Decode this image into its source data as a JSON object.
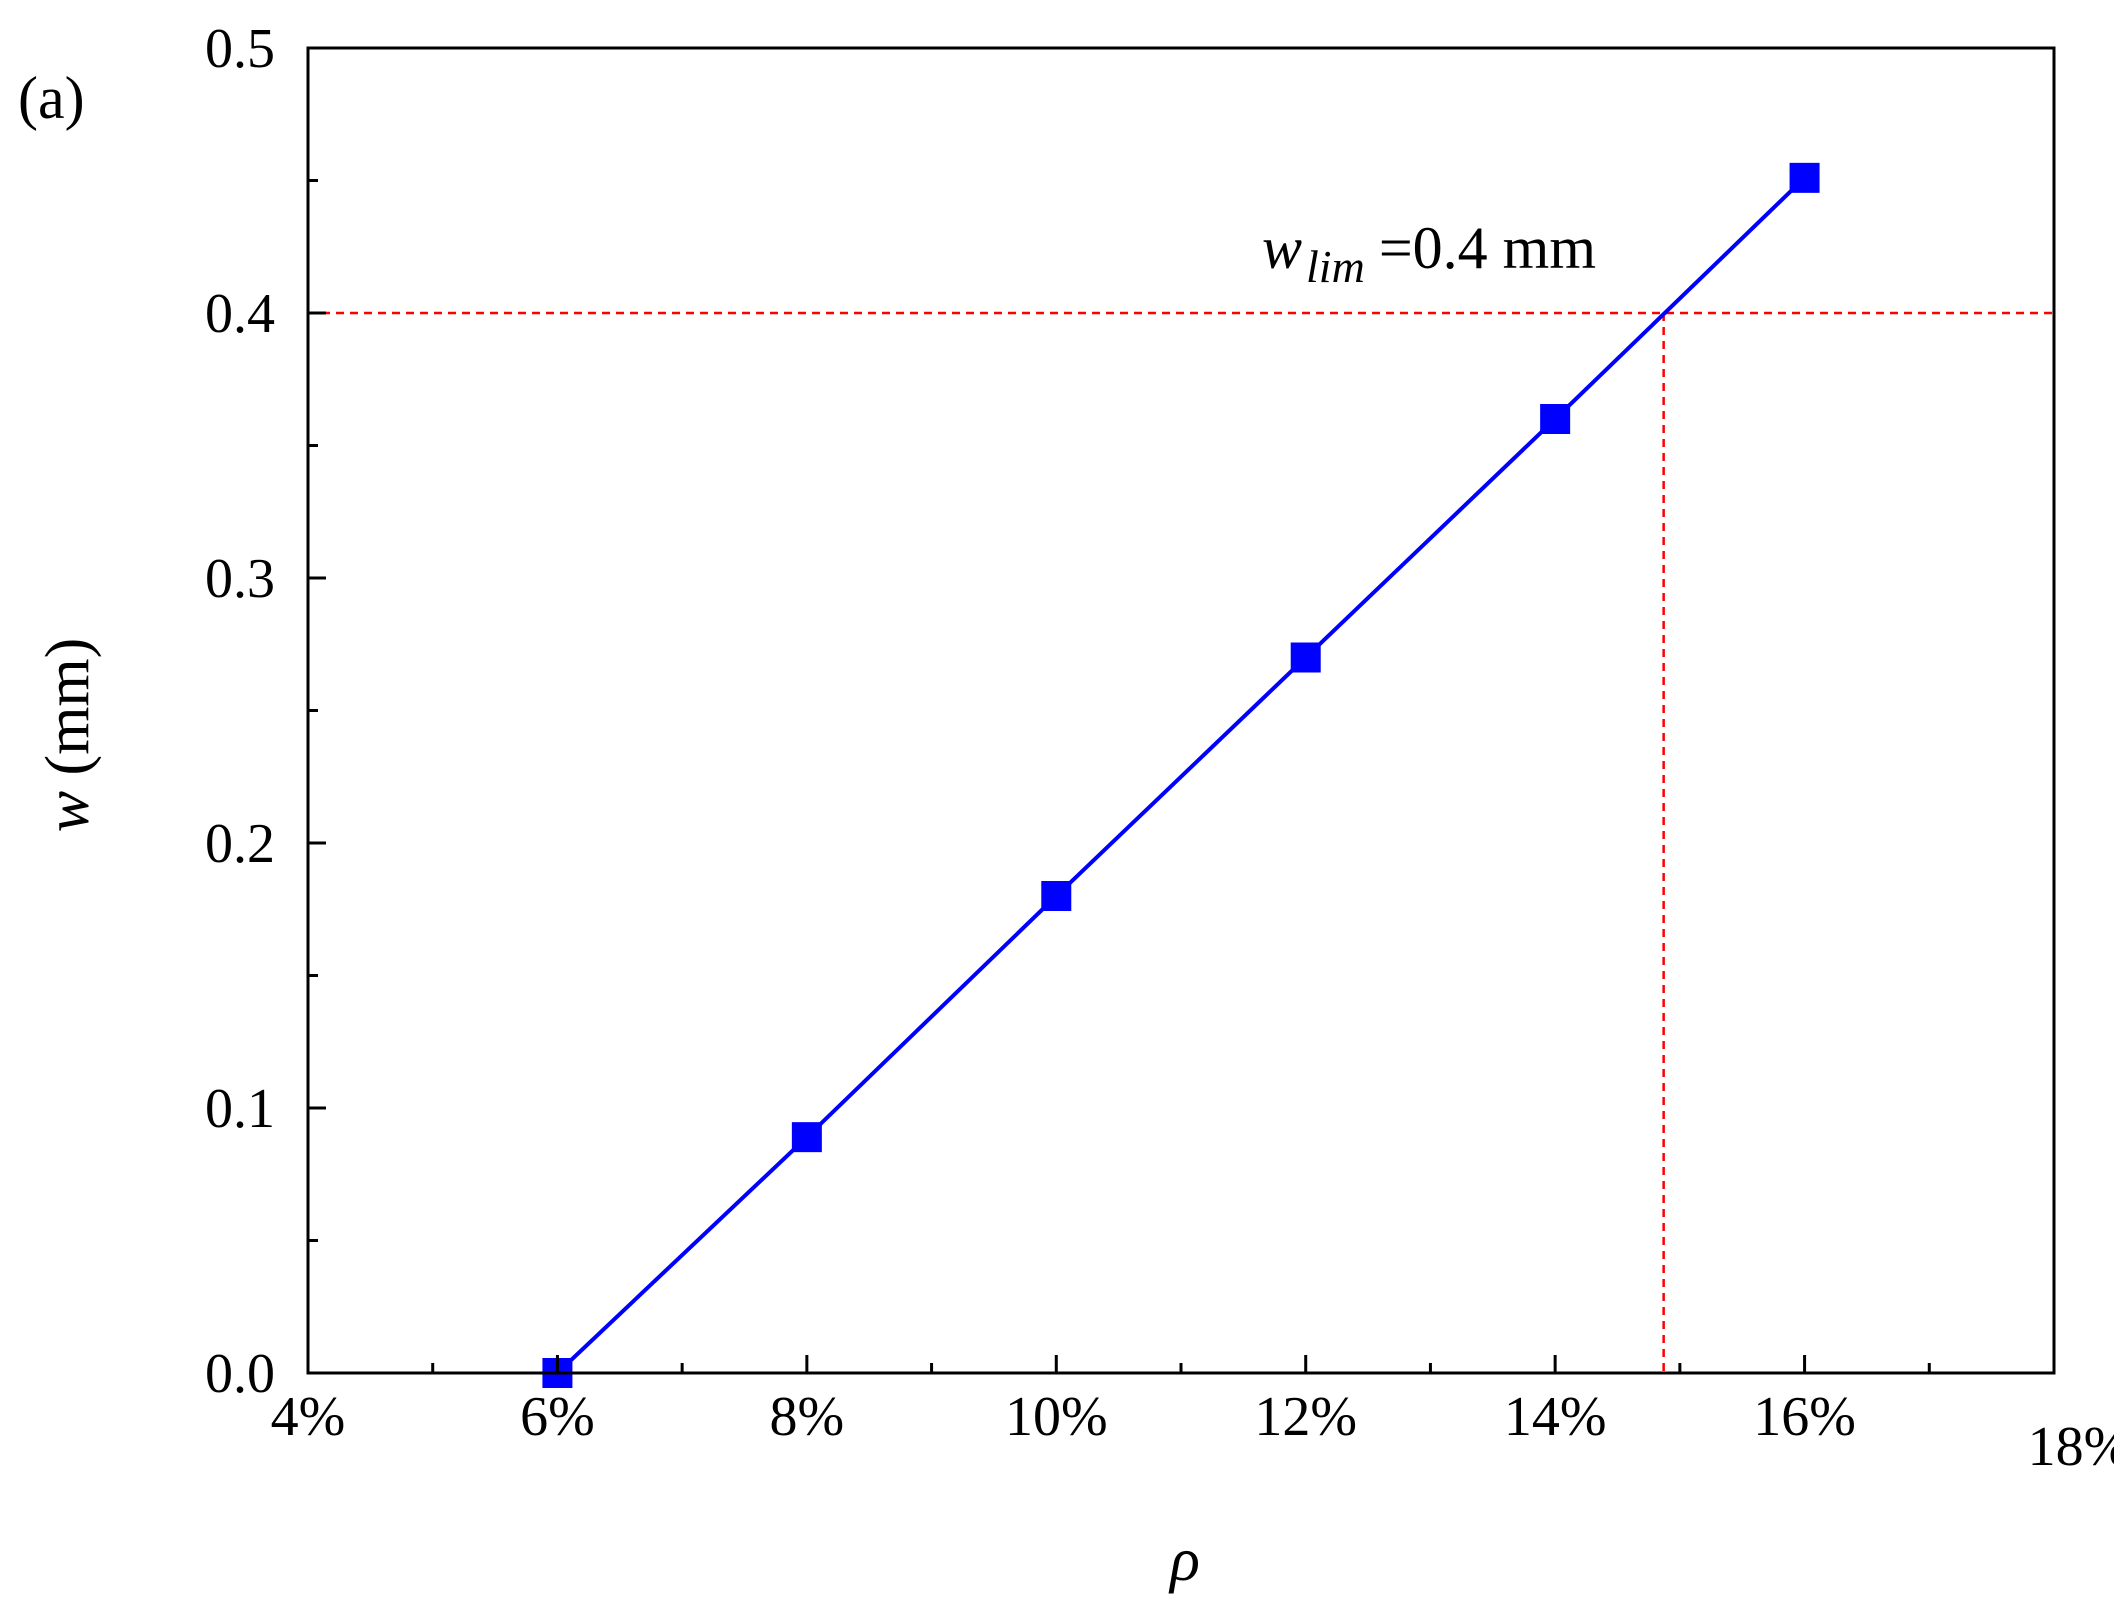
{
  "panel_label": "(a)",
  "chart_data": {
    "type": "line",
    "xlabel": "ρ",
    "ylabel_var": "w",
    "ylabel_unit": "(mm)",
    "xlim": [
      4,
      18
    ],
    "ylim": [
      0,
      0.5
    ],
    "x_ticks": [
      4,
      6,
      8,
      10,
      12,
      14,
      16,
      18
    ],
    "x_tick_labels": [
      "4%",
      "6%",
      "8%",
      "10%",
      "12%",
      "14%",
      "16%",
      "18%"
    ],
    "x_minor_ticks": [
      5,
      7,
      9,
      11,
      13,
      15,
      17
    ],
    "y_ticks": [
      0,
      0.1,
      0.2,
      0.3,
      0.4,
      0.5
    ],
    "y_tick_labels": [
      "0.0",
      "0.1",
      "0.2",
      "0.3",
      "0.4",
      "0.5"
    ],
    "y_minor_ticks": [
      0.05,
      0.15,
      0.25,
      0.35,
      0.45
    ],
    "grid": false,
    "series": [
      {
        "x": [
          6,
          8,
          10,
          12,
          14,
          16
        ],
        "y": [
          0.0,
          0.089,
          0.18,
          0.27,
          0.36,
          0.451
        ],
        "color": "#0000ff",
        "marker": "square"
      }
    ],
    "reference": {
      "y": 0.4,
      "x": 14.87,
      "color": "#ff0000",
      "label_var": "w",
      "label_sub": "lim",
      "label_text": "=0.4 mm"
    }
  }
}
